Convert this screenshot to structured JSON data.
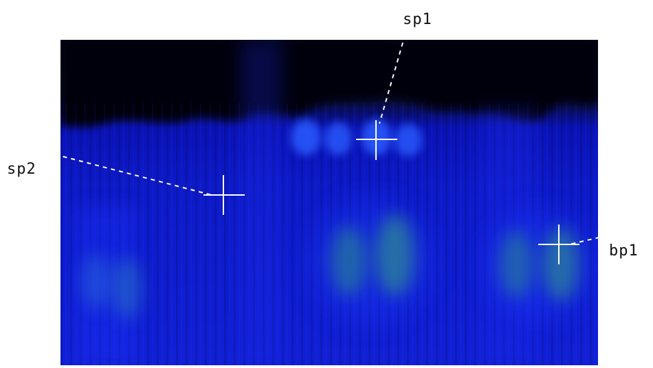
{
  "labels": {
    "sp1": "sp1",
    "sp2": "sp2",
    "bp1": "bp1"
  },
  "colors": {
    "background": "#ffffff",
    "image_dark": "#04060e",
    "image_blue": "#1020d8",
    "bright_blue": "#2a5cff",
    "band_green": "#2a9a6a",
    "marker": "#ffffff"
  }
}
